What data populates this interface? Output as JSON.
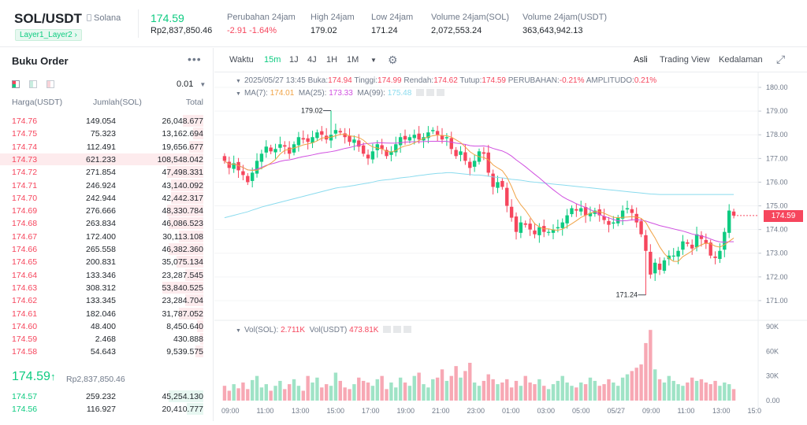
{
  "header": {
    "symbol": "SOL/USDT",
    "network": "Solana",
    "tag": "Layer1_Layer2",
    "price": "174.59",
    "price_fiat": "Rp2,837,850.46",
    "stats": [
      {
        "label": "Perubahan 24jam",
        "value": "-2.91 -1.64%",
        "red": true
      },
      {
        "label": "High 24jam",
        "value": "179.02",
        "red": false
      },
      {
        "label": "Low 24jam",
        "value": "171.24",
        "red": false
      },
      {
        "label": "Volume 24jam(SOL)",
        "value": "2,072,553.24",
        "red": false
      },
      {
        "label": "Volume 24jam(USDT)",
        "value": "363,643,942.13",
        "red": false
      }
    ]
  },
  "orderbook": {
    "title": "Buku Order",
    "more": "•••",
    "step": "0.01",
    "col_price": "Harga(USDT)",
    "col_amount": "Jumlah(SOL)",
    "col_total": "Total",
    "asks": [
      {
        "p": "174.76",
        "a": "149.054",
        "t": "26,048.677",
        "d": 0.1
      },
      {
        "p": "174.75",
        "a": "75.323",
        "t": "13,162.694",
        "d": 0.05
      },
      {
        "p": "174.74",
        "a": "112.491",
        "t": "19,656.677",
        "d": 0.07
      },
      {
        "p": "174.73",
        "a": "621.233",
        "t": "108,548.042",
        "d": 1.0
      },
      {
        "p": "174.72",
        "a": "271.854",
        "t": "47,498.331",
        "d": 0.18
      },
      {
        "p": "174.71",
        "a": "246.924",
        "t": "43,140.092",
        "d": 0.16
      },
      {
        "p": "174.70",
        "a": "242.944",
        "t": "42,442.317",
        "d": 0.16
      },
      {
        "p": "174.69",
        "a": "276.666",
        "t": "48,330.784",
        "d": 0.18
      },
      {
        "p": "174.68",
        "a": "263.834",
        "t": "46,086.523",
        "d": 0.17
      },
      {
        "p": "174.67",
        "a": "172.400",
        "t": "30,113.108",
        "d": 0.12
      },
      {
        "p": "174.66",
        "a": "265.558",
        "t": "46,382.360",
        "d": 0.17
      },
      {
        "p": "174.65",
        "a": "200.831",
        "t": "35,075.134",
        "d": 0.13
      },
      {
        "p": "174.64",
        "a": "133.346",
        "t": "23,287.545",
        "d": 0.09
      },
      {
        "p": "174.63",
        "a": "308.312",
        "t": "53,840.525",
        "d": 0.2
      },
      {
        "p": "174.62",
        "a": "133.345",
        "t": "23,284.704",
        "d": 0.09
      },
      {
        "p": "174.61",
        "a": "182.046",
        "t": "31,787.052",
        "d": 0.12
      },
      {
        "p": "174.60",
        "a": "48.400",
        "t": "8,450.640",
        "d": 0.03
      },
      {
        "p": "174.59",
        "a": "2.468",
        "t": "430.888",
        "d": 0.01
      },
      {
        "p": "174.58",
        "a": "54.643",
        "t": "9,539.575",
        "d": 0.04
      }
    ],
    "mid_price": "174.59",
    "mid_arrow": "↑",
    "mid_fiat": "Rp2,837,850.46",
    "bids": [
      {
        "p": "174.57",
        "a": "259.232",
        "t": "45,254.130",
        "d": 0.17
      },
      {
        "p": "174.56",
        "a": "116.927",
        "t": "20,410.777",
        "d": 0.08
      }
    ]
  },
  "toolbar": {
    "time_label": "Waktu",
    "intervals": [
      "15m",
      "1J",
      "4J",
      "1H",
      "1M"
    ],
    "active_interval": "15m",
    "views": [
      "Asli",
      "Trading View",
      "Kedalaman"
    ],
    "active_view": "Asli"
  },
  "chart_info": {
    "line1": [
      {
        "k": "2025/05/27 13:45",
        "v": ""
      },
      {
        "k": "Buka:",
        "v": "174.94"
      },
      {
        "k": "Tinggi:",
        "v": "174.99"
      },
      {
        "k": "Rendah:",
        "v": "174.62"
      },
      {
        "k": "Tutup:",
        "v": "174.59"
      },
      {
        "k": "PERUBAHAN:",
        "v": "-0.21%"
      },
      {
        "k": "AMPLITUDO:",
        "v": "0.21%"
      }
    ],
    "ma7_label": "MA(7):",
    "ma7": "174.01",
    "ma25_label": "MA(25):",
    "ma25": "173.33",
    "ma99_label": "MA(99):",
    "ma99": "175.48",
    "vol_label": "Vol(SOL):",
    "vol_sol": "2.711K",
    "volu_label": "Vol(USDT)",
    "vol_usdt": "473.81K",
    "high_mark": "179.02",
    "low_mark": "171.24",
    "current_tag": "174.59"
  },
  "chart_data": {
    "type": "candlestick",
    "y_ticks": [
      "180.00",
      "179.00",
      "178.00",
      "177.00",
      "176.00",
      "175.00",
      "174.00",
      "173.00",
      "172.00",
      "171.00"
    ],
    "ylim": [
      170.5,
      180.3
    ],
    "vol_ticks": [
      "90K",
      "60K",
      "30K",
      "0.00"
    ],
    "vol_lim": [
      0,
      90000
    ],
    "x_ticks": [
      "09:00",
      "11:00",
      "13:00",
      "15:00",
      "17:00",
      "19:00",
      "21:00",
      "23:00",
      "01:00",
      "03:00",
      "05:00",
      "05/27",
      "09:00",
      "11:00",
      "13:00",
      "15:0"
    ],
    "colors": {
      "up": "#0ecb81",
      "down": "#f6465d",
      "ma7": "#f0a346",
      "ma25": "#d050e0",
      "ma99": "#8adbee"
    },
    "closes": [
      176.9,
      176.6,
      176.8,
      176.5,
      176.3,
      176.0,
      176.4,
      176.9,
      177.2,
      177.5,
      177.3,
      177.4,
      177.6,
      177.5,
      177.2,
      177.6,
      177.9,
      177.8,
      177.7,
      177.9,
      178.1,
      178.0,
      177.8,
      178.0,
      178.2,
      178.1,
      177.9,
      177.7,
      177.8,
      177.5,
      177.2,
      177.0,
      177.3,
      177.6,
      177.4,
      177.1,
      177.3,
      177.6,
      177.9,
      177.8,
      177.9,
      178.0,
      177.8,
      177.9,
      178.1,
      178.2,
      178.0,
      177.8,
      177.9,
      177.4,
      177.1,
      177.3,
      176.9,
      176.6,
      176.9,
      177.3,
      177.2,
      176.4,
      175.8,
      176.0,
      175.8,
      175.0,
      174.5,
      173.9,
      174.3,
      174.2,
      174.0,
      173.8,
      174.1,
      173.9,
      173.9,
      174.0,
      174.1,
      174.3,
      174.6,
      174.9,
      174.8,
      174.9,
      174.6,
      174.7,
      174.8,
      174.6,
      174.4,
      174.2,
      174.3,
      174.5,
      174.8,
      174.9,
      174.7,
      174.3,
      173.8,
      173.1,
      172.1,
      172.6,
      172.3,
      172.7,
      172.9,
      172.9,
      173.1,
      173.5,
      173.4,
      173.2,
      173.8,
      173.6,
      173.4,
      172.9,
      172.8,
      173.1,
      173.9,
      174.8,
      174.59
    ],
    "ma99": [
      174.5,
      174.55,
      174.6,
      174.65,
      174.7,
      174.75,
      174.82,
      174.88,
      174.95,
      175.0,
      175.05,
      175.1,
      175.15,
      175.2,
      175.25,
      175.3,
      175.35,
      175.4,
      175.45,
      175.5,
      175.55,
      175.6,
      175.65,
      175.7,
      175.75,
      175.78,
      175.8,
      175.83,
      175.86,
      175.9,
      175.93,
      175.96,
      176.0,
      176.05,
      176.08,
      176.1,
      176.12,
      176.15,
      176.18,
      176.2,
      176.22,
      176.25,
      176.28,
      176.3,
      176.33,
      176.35,
      176.37,
      176.38,
      176.4,
      176.4,
      176.38,
      176.36,
      176.34,
      176.32,
      176.3,
      176.3,
      176.28,
      176.25,
      176.22,
      176.2,
      176.18,
      176.15,
      176.12,
      176.1,
      176.08,
      176.05,
      176.02,
      176.0,
      175.98,
      175.96,
      175.94,
      175.92,
      175.9,
      175.88,
      175.86,
      175.84,
      175.82,
      175.8,
      175.78,
      175.76,
      175.74,
      175.72,
      175.7,
      175.68,
      175.66,
      175.64,
      175.62,
      175.6,
      175.58,
      175.56,
      175.54,
      175.52,
      175.5,
      175.49,
      175.48,
      175.48,
      175.48,
      175.48,
      175.48,
      175.48,
      175.48,
      175.48,
      175.48,
      175.48,
      175.48,
      175.48,
      175.48,
      175.48,
      175.48,
      175.48,
      175.48
    ],
    "volumes": [
      18,
      12,
      20,
      15,
      22,
      14,
      25,
      30,
      16,
      20,
      12,
      18,
      24,
      14,
      20,
      26,
      18,
      12,
      30,
      22,
      28,
      16,
      20,
      18,
      34,
      24,
      16,
      14,
      20,
      28,
      24,
      22,
      18,
      26,
      30,
      14,
      22,
      16,
      28,
      22,
      18,
      30,
      34,
      20,
      16,
      26,
      28,
      38,
      24,
      30,
      42,
      28,
      36,
      46,
      22,
      18,
      24,
      32,
      26,
      20,
      22,
      26,
      16,
      24,
      18,
      30,
      22,
      20,
      26,
      18,
      14,
      20,
      24,
      30,
      22,
      18,
      16,
      22,
      20,
      28,
      24,
      18,
      20,
      26,
      22,
      18,
      28,
      32,
      36,
      40,
      44,
      70,
      86,
      38,
      26,
      22,
      30,
      24,
      20,
      18,
      22,
      28,
      24,
      26,
      22,
      20,
      24,
      18,
      22,
      20,
      14
    ]
  }
}
